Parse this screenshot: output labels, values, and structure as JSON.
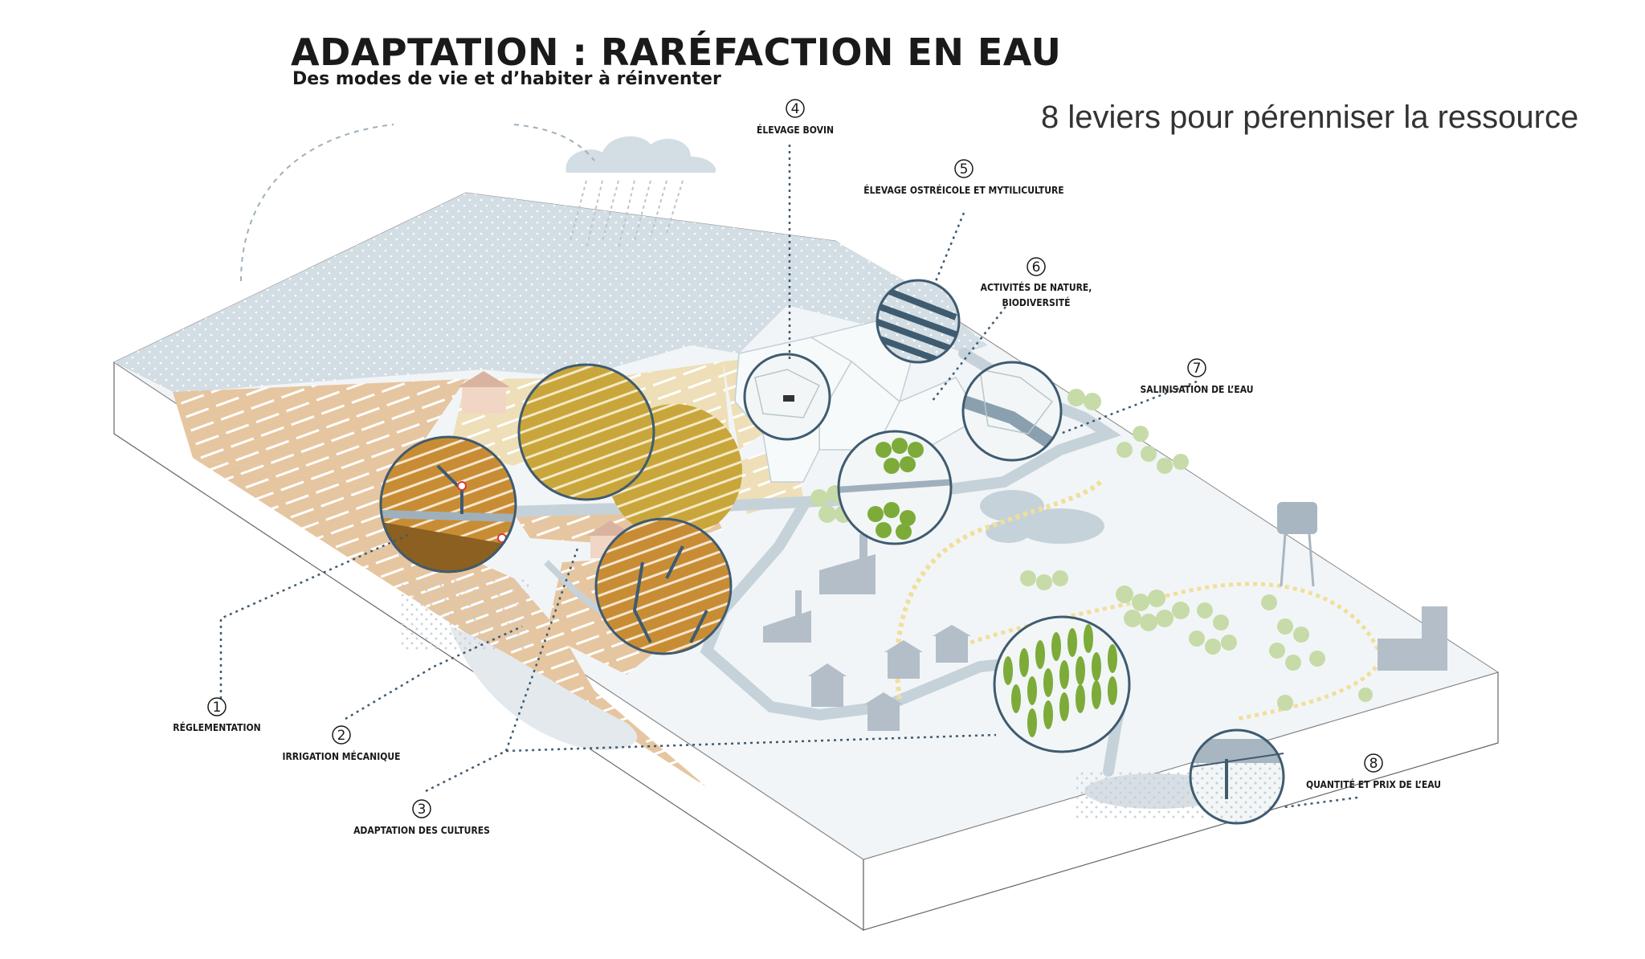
{
  "title": "ADAPTATION : RARÉFACTION EN EAU",
  "subtitle": "Des modes de vie et d’habiter à réinventer",
  "headline": "8 leviers pour pérenniser la ressource",
  "levers": [
    {
      "num": "1",
      "label": "RÉGLEMENTATION"
    },
    {
      "num": "2",
      "label": "IRRIGATION MÉCANIQUE"
    },
    {
      "num": "3",
      "label": "ADAPTATION DES CULTURES"
    },
    {
      "num": "4",
      "label": "ÉLEVAGE BOVIN"
    },
    {
      "num": "5",
      "label": "ÉLEVAGE OSTRÉICOLE ET MYTILICULTURE"
    },
    {
      "num": "6",
      "label_line1": "ACTIVITÉS DE NATURE,",
      "label_line2": "BIODIVERSITÉ"
    },
    {
      "num": "7",
      "label": "SALINISATION DE L’EAU"
    },
    {
      "num": "8",
      "label": "QUANTITÉ ET PRIX DE L’EAU"
    }
  ],
  "colors": {
    "sea": "#d3dde4",
    "field_light": "#ecdcb4",
    "field_tan": "#e3c29a",
    "field_ochre": "#c9a236",
    "field_orange": "#c98d32",
    "river": "#c6d2da",
    "block_side": "#ffffff",
    "tree": "#b8d196",
    "tree_dark": "#7cab3a",
    "building": "#a8b6c2",
    "lens_stroke": "#3f5b70",
    "dotted_line": "#3f5b70"
  }
}
